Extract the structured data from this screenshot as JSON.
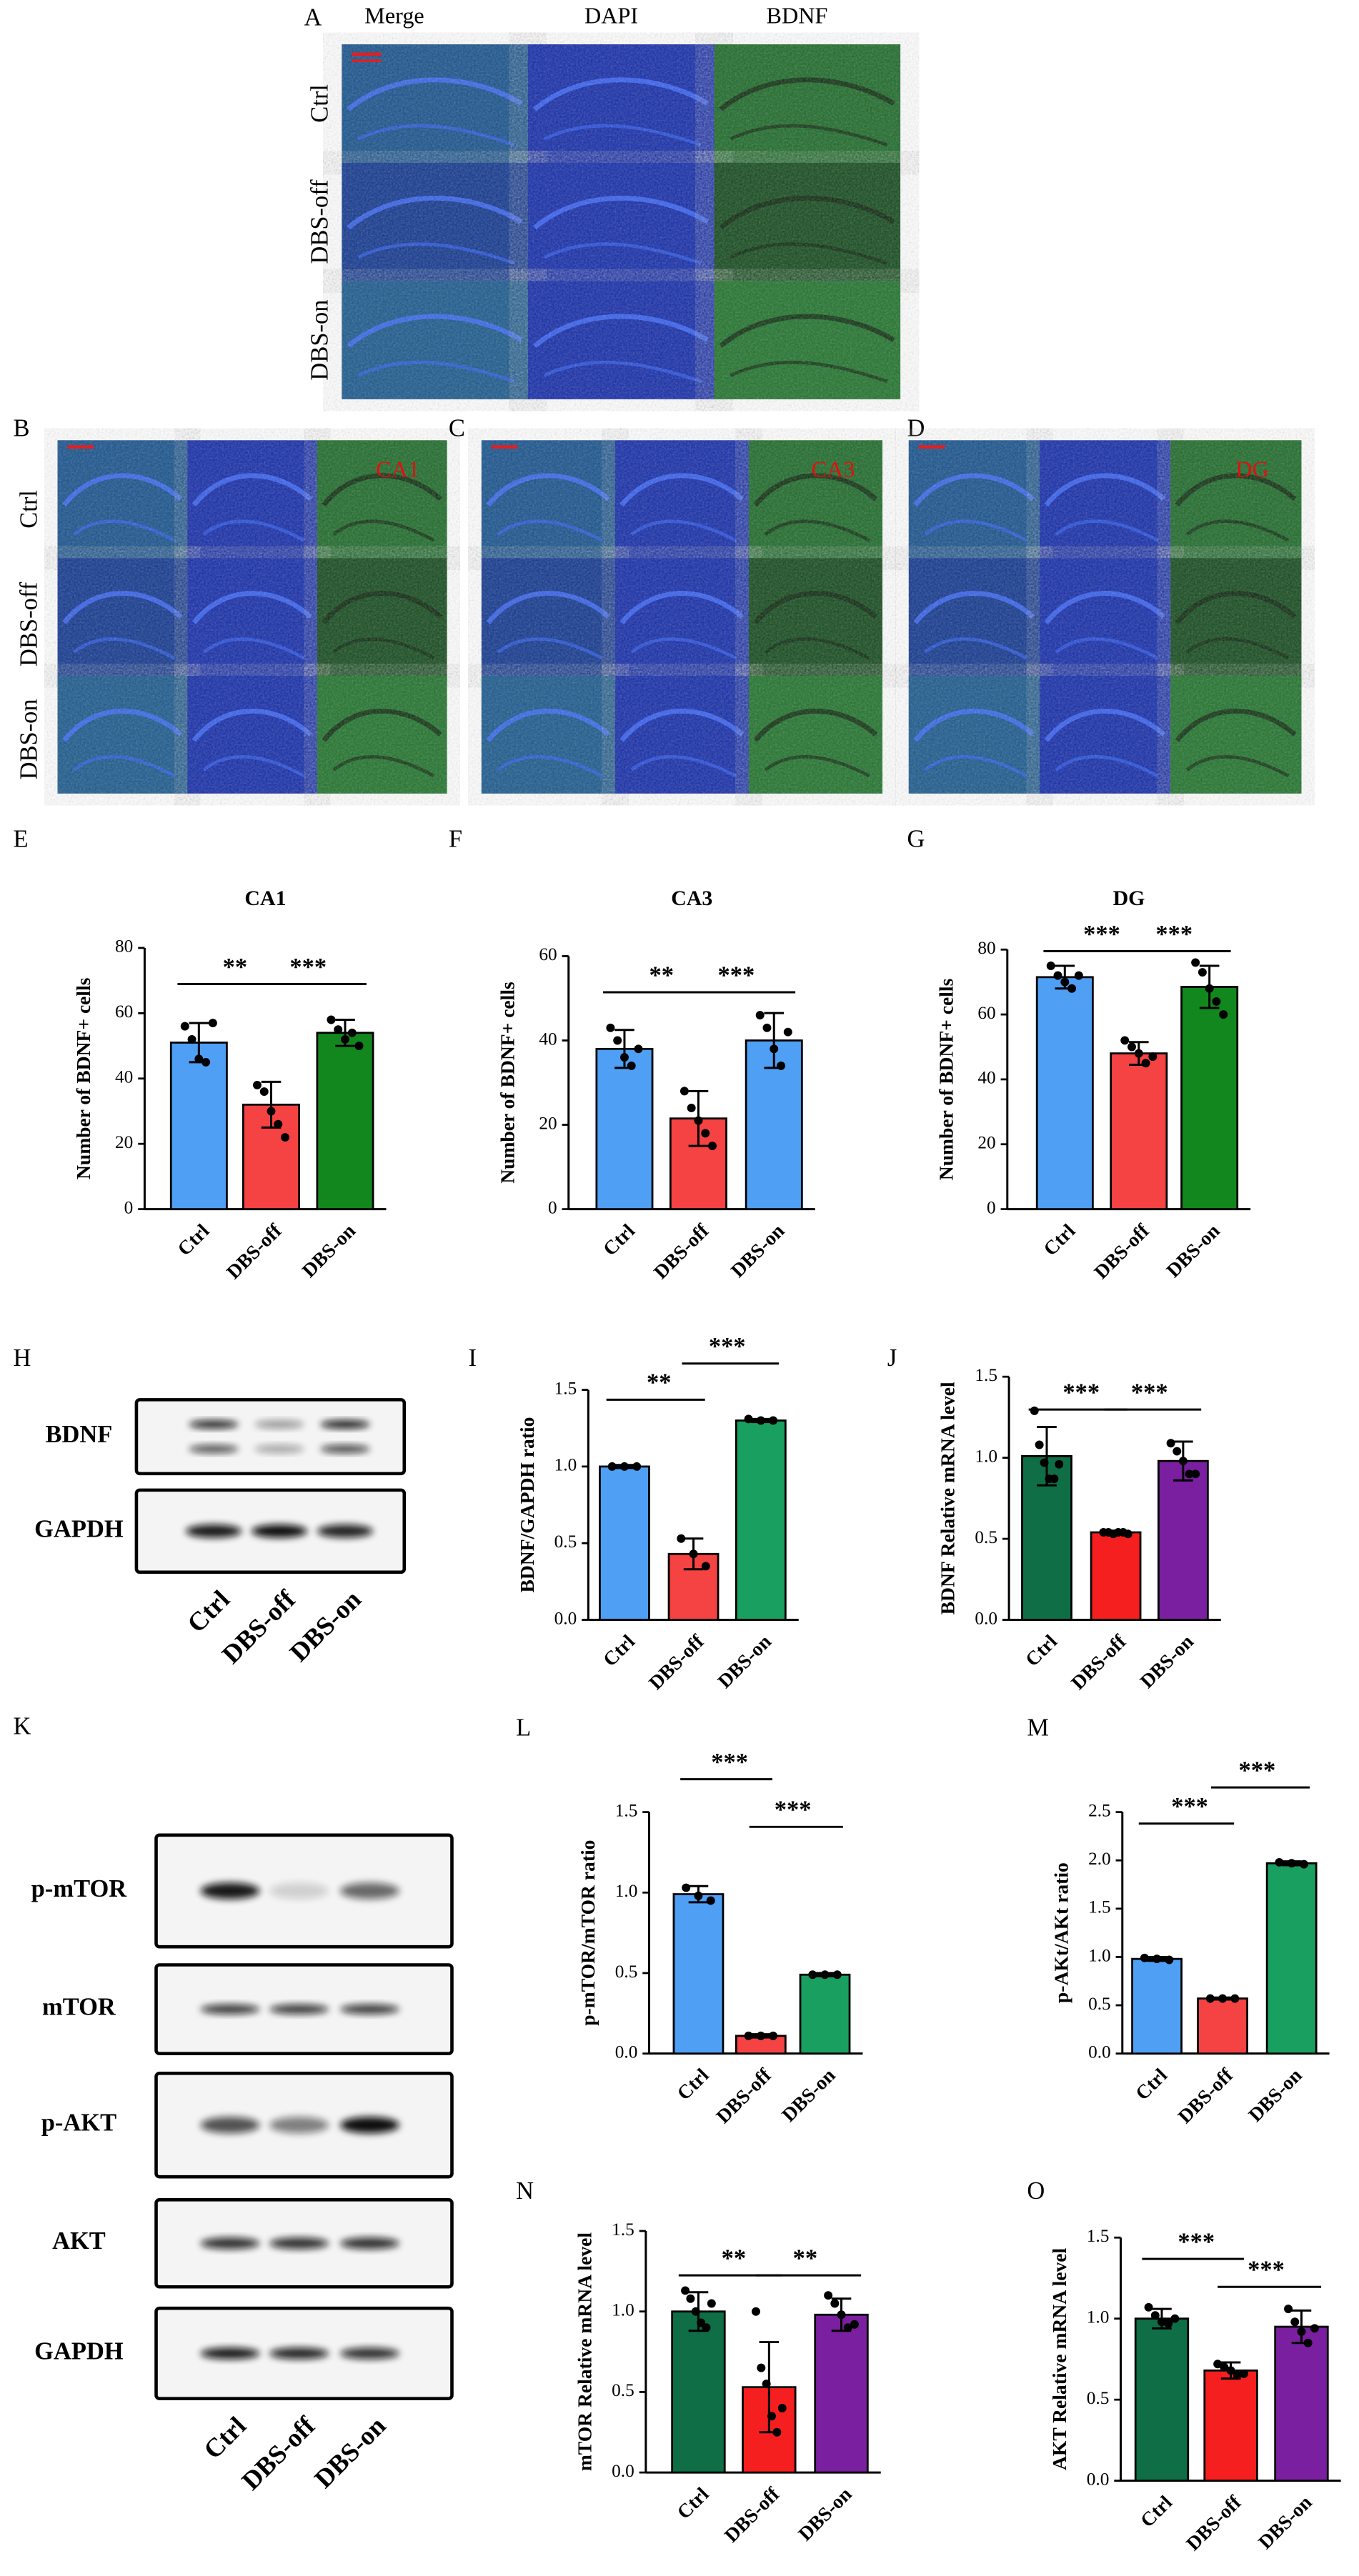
{
  "image_panels": {
    "A": {
      "panel": "A",
      "columns": [
        "Merge",
        "DAPI",
        "BDNF"
      ],
      "rows": [
        "Ctrl",
        "DBS-off",
        "DBS-on"
      ]
    },
    "B": {
      "panel": "B",
      "region": "CA1",
      "rows": [
        "Ctrl",
        "DBS-off",
        "DBS-on"
      ]
    },
    "C": {
      "panel": "C",
      "region": "CA3"
    },
    "D": {
      "panel": "D",
      "region": "DG"
    }
  },
  "blots": {
    "H": {
      "panel": "H",
      "proteins": [
        "BDNF",
        "GAPDH"
      ],
      "lanes": [
        "Ctrl",
        "DBS-off",
        "DBS-on"
      ]
    },
    "K": {
      "panel": "K",
      "proteins": [
        "p-mTOR",
        "mTOR",
        "p-AKT",
        "AKT",
        "GAPDH"
      ],
      "lanes": [
        "Ctrl",
        "DBS-off",
        "DBS-on"
      ]
    }
  },
  "chart_data": [
    {
      "type": "bar",
      "panel": "E",
      "title": "CA1",
      "ylabel": "Number of BDNF+ cells",
      "categories": [
        "Ctrl",
        "DBS-off",
        "DBS-on"
      ],
      "values": [
        51,
        32,
        54
      ],
      "errors": [
        6,
        7,
        4
      ],
      "points": [
        [
          56,
          52,
          46,
          45,
          57
        ],
        [
          38,
          36,
          30,
          26,
          22
        ],
        [
          58,
          55,
          52,
          54,
          50
        ]
      ],
      "colors": [
        "#4f9ff5",
        "#f54242",
        "#12871e"
      ],
      "ylim": [
        0,
        80
      ],
      "yticks": [
        0,
        20,
        40,
        60,
        80
      ],
      "significance": [
        "**",
        "***"
      ]
    },
    {
      "type": "bar",
      "panel": "F",
      "title": "CA3",
      "ylabel": "Number of BDNF+ cells",
      "categories": [
        "Ctrl",
        "DBS-off",
        "DBS-on"
      ],
      "values": [
        38,
        21.5,
        40
      ],
      "errors": [
        4.5,
        6.5,
        6.5
      ],
      "points": [
        [
          43,
          40,
          36,
          34,
          38
        ],
        [
          28,
          24,
          21,
          18,
          15
        ],
        [
          46,
          43,
          38,
          34,
          42
        ]
      ],
      "colors": [
        "#4f9ff5",
        "#f54242",
        "#4f9ff5"
      ],
      "ylim": [
        0,
        60
      ],
      "yticks": [
        0,
        20,
        40,
        60
      ],
      "significance": [
        "**",
        "***"
      ]
    },
    {
      "type": "bar",
      "panel": "G",
      "title": "DG",
      "ylabel": "Number of BDNF+ cells",
      "categories": [
        "Ctrl",
        "DBS-off",
        "DBS-on"
      ],
      "values": [
        71.5,
        48,
        68.5
      ],
      "errors": [
        3.5,
        3.5,
        6.5
      ],
      "points": [
        [
          75,
          72,
          70,
          68,
          72
        ],
        [
          52,
          50,
          48,
          45,
          47
        ],
        [
          76,
          73,
          68,
          64,
          60
        ]
      ],
      "colors": [
        "#4f9ff5",
        "#f54242",
        "#12871e"
      ],
      "ylim": [
        0,
        80
      ],
      "yticks": [
        0,
        20,
        40,
        60,
        80
      ],
      "significance": [
        "***",
        "***"
      ]
    },
    {
      "type": "bar",
      "panel": "I",
      "ylabel": "BDNF/GAPDH ratio",
      "categories": [
        "Ctrl",
        "DBS-off",
        "DBS-on"
      ],
      "values": [
        1.0,
        0.43,
        1.3
      ],
      "errors": [
        0.01,
        0.1,
        0.01
      ],
      "points": [
        [
          1.0,
          1.0,
          1.0
        ],
        [
          0.53,
          0.43,
          0.35
        ],
        [
          1.31,
          1.3,
          1.3
        ]
      ],
      "colors": [
        "#4f9ff5",
        "#f54242",
        "#19a060"
      ],
      "ylim": [
        0,
        1.5
      ],
      "yticks": [
        {
          "value": 0,
          "label": "0.0"
        },
        0.5,
        {
          "value": 1,
          "label": "1.0"
        },
        1.5
      ],
      "significance": [
        "**",
        "***"
      ]
    },
    {
      "type": "bar",
      "panel": "J",
      "ylabel": "BDNF Relative mRNA level",
      "categories": [
        "Ctrl",
        "DBS-off",
        "DBS-on"
      ],
      "values": [
        1.01,
        0.54,
        0.98
      ],
      "errors": [
        0.18,
        0.01,
        0.12
      ],
      "points": [
        [
          1.29,
          1.08,
          0.97,
          0.87,
          0.87,
          0.96
        ],
        [
          0.54,
          0.54,
          0.53,
          0.54,
          0.54,
          0.53
        ],
        [
          1.09,
          1.04,
          0.98,
          0.9,
          0.9
        ]
      ],
      "colors": [
        "#0f6e45",
        "#f51f1f",
        "#7a1fa0"
      ],
      "ylim": [
        0,
        1.5
      ],
      "yticks": [
        {
          "value": 0,
          "label": "0.0"
        },
        0.5,
        {
          "value": 1,
          "label": "1.0"
        },
        1.5
      ],
      "significance": [
        "***",
        "***"
      ]
    },
    {
      "type": "bar",
      "panel": "L",
      "ylabel": "p-mTOR/mTOR ratio",
      "categories": [
        "Ctrl",
        "DBS-off",
        "DBS-on"
      ],
      "values": [
        0.99,
        0.11,
        0.49
      ],
      "errors": [
        0.05,
        0.01,
        0.01
      ],
      "points": [
        [
          1.03,
          0.98,
          0.95
        ],
        [
          0.11,
          0.11,
          0.11
        ],
        [
          0.49,
          0.49,
          0.49
        ]
      ],
      "colors": [
        "#4f9ff5",
        "#f54242",
        "#19a060"
      ],
      "ylim": [
        0,
        1.5
      ],
      "yticks": [
        {
          "value": 0,
          "label": "0.0"
        },
        0.5,
        {
          "value": 1,
          "label": "1.0"
        },
        1.5
      ],
      "significance": [
        "***",
        "***"
      ]
    },
    {
      "type": "bar",
      "panel": "M",
      "ylabel": "p-AKt/AKt ratio",
      "categories": [
        "Ctrl",
        "DBS-off",
        "DBS-on"
      ],
      "values": [
        0.98,
        0.57,
        1.97
      ],
      "errors": [
        0.02,
        0.01,
        0.02
      ],
      "points": [
        [
          0.99,
          0.98,
          0.97
        ],
        [
          0.57,
          0.57,
          0.57
        ],
        [
          1.98,
          1.97,
          1.96
        ]
      ],
      "colors": [
        "#4f9ff5",
        "#f54242",
        "#19a060"
      ],
      "ylim": [
        0,
        2.5
      ],
      "yticks": [
        {
          "value": 0,
          "label": "0.0"
        },
        0.5,
        {
          "value": 1,
          "label": "1.0"
        },
        1.5,
        {
          "value": 2,
          "label": "2.0"
        },
        2.5
      ],
      "significance": [
        "***",
        "***"
      ]
    },
    {
      "type": "bar",
      "panel": "N",
      "ylabel": "mTOR Relative mRNA level",
      "categories": [
        "Ctrl",
        "DBS-off",
        "DBS-on"
      ],
      "values": [
        1.0,
        0.53,
        0.98
      ],
      "errors": [
        0.12,
        0.28,
        0.1
      ],
      "points": [
        [
          1.13,
          1.08,
          1.0,
          0.93,
          0.9,
          1.05
        ],
        [
          1.0,
          0.65,
          0.55,
          0.35,
          0.25,
          0.4
        ],
        [
          1.1,
          1.05,
          0.98,
          0.9,
          0.92
        ]
      ],
      "colors": [
        "#0f6e45",
        "#f51f1f",
        "#7a1fa0"
      ],
      "ylim": [
        0,
        1.5
      ],
      "yticks": [
        {
          "value": 0,
          "label": "0.0"
        },
        0.5,
        {
          "value": 1,
          "label": "1.0"
        },
        1.5
      ],
      "significance": [
        "**",
        "**"
      ]
    },
    {
      "type": "bar",
      "panel": "O",
      "ylabel": "AKT Relative mRNA level",
      "categories": [
        "Ctrl",
        "DBS-off",
        "DBS-on"
      ],
      "values": [
        1.0,
        0.68,
        0.95
      ],
      "errors": [
        0.06,
        0.05,
        0.1
      ],
      "points": [
        [
          1.07,
          1.02,
          0.98,
          0.97,
          1.0
        ],
        [
          0.72,
          0.7,
          0.68,
          0.65,
          0.66
        ],
        [
          1.06,
          0.98,
          0.92,
          0.85,
          0.94
        ]
      ],
      "colors": [
        "#0f6e45",
        "#f51f1f",
        "#7a1fa0"
      ],
      "ylim": [
        0,
        1.5
      ],
      "yticks": [
        {
          "value": 0,
          "label": "0.0"
        },
        0.5,
        {
          "value": 1,
          "label": "1.0"
        },
        1.5
      ],
      "significance": [
        "***",
        "***"
      ]
    }
  ]
}
